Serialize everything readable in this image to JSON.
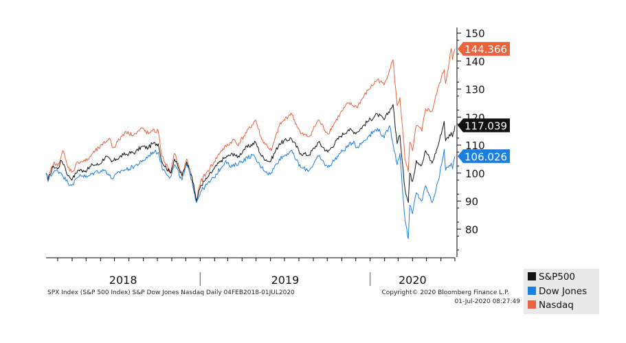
{
  "colors": {
    "sp500": "#111111",
    "dow": "#1a7fe0",
    "nasdaq": "#e8643c",
    "axis": "#000000"
  },
  "footer": {
    "source": "SPX Index (S&P 500 Index) S&P Dow Jones Nasdaq  Daily 04FEB2018-01JUL2020",
    "copyright": "Copyright© 2020 Bloomberg Finance L.P.",
    "timestamp": "01-Jul-2020 08:27:49"
  },
  "chart_data": {
    "type": "line",
    "x_start": "2018-02-04",
    "x_end": "2020-07-01",
    "year_labels": [
      "2018",
      "2019",
      "2020"
    ],
    "y_ticks": [
      80,
      90,
      100,
      110,
      120,
      130,
      140,
      150
    ],
    "ylim": [
      70,
      152
    ],
    "y_axis_side": "right",
    "grid": false,
    "legend_position": "bottom-right",
    "series": [
      {
        "name": "S&P500",
        "color": "#111111",
        "last_value": "117.039",
        "points": [
          [
            "2018-02-04",
            100.0
          ],
          [
            "2018-02-08",
            97.5
          ],
          [
            "2018-02-12",
            99.5
          ],
          [
            "2018-02-20",
            102.5
          ],
          [
            "2018-03-01",
            101.5
          ],
          [
            "2018-03-09",
            104.5
          ],
          [
            "2018-03-15",
            103.0
          ],
          [
            "2018-03-23",
            99.0
          ],
          [
            "2018-04-02",
            98.0
          ],
          [
            "2018-04-13",
            101.0
          ],
          [
            "2018-04-25",
            101.0
          ],
          [
            "2018-05-03",
            101.0
          ],
          [
            "2018-05-15",
            103.0
          ],
          [
            "2018-05-29",
            103.0
          ],
          [
            "2018-06-12",
            106.0
          ],
          [
            "2018-06-25",
            104.0
          ],
          [
            "2018-07-05",
            105.0
          ],
          [
            "2018-07-20",
            106.5
          ],
          [
            "2018-08-01",
            107.0
          ],
          [
            "2018-08-15",
            107.5
          ],
          [
            "2018-08-29",
            109.5
          ],
          [
            "2018-09-12",
            109.0
          ],
          [
            "2018-09-20",
            110.5
          ],
          [
            "2018-10-03",
            110.5
          ],
          [
            "2018-10-11",
            104.0
          ],
          [
            "2018-10-29",
            100.0
          ],
          [
            "2018-11-07",
            105.0
          ],
          [
            "2018-11-23",
            99.0
          ],
          [
            "2018-12-03",
            104.0
          ],
          [
            "2018-12-14",
            99.0
          ],
          [
            "2018-12-24",
            90.0
          ],
          [
            "2019-01-02",
            95.5
          ],
          [
            "2019-01-15",
            98.0
          ],
          [
            "2019-01-31",
            101.5
          ],
          [
            "2019-02-15",
            104.5
          ],
          [
            "2019-03-01",
            106.0
          ],
          [
            "2019-03-15",
            107.0
          ],
          [
            "2019-03-22",
            105.5
          ],
          [
            "2019-04-05",
            108.5
          ],
          [
            "2019-04-30",
            111.0
          ],
          [
            "2019-05-13",
            106.0
          ],
          [
            "2019-05-31",
            104.0
          ],
          [
            "2019-06-20",
            110.5
          ],
          [
            "2019-07-15",
            112.5
          ],
          [
            "2019-08-05",
            107.0
          ],
          [
            "2019-08-23",
            106.5
          ],
          [
            "2019-09-12",
            111.0
          ],
          [
            "2019-10-02",
            107.5
          ],
          [
            "2019-10-28",
            113.0
          ],
          [
            "2019-11-15",
            115.5
          ],
          [
            "2019-12-03",
            114.5
          ],
          [
            "2019-12-27",
            118.5
          ],
          [
            "2020-01-17",
            121.0
          ],
          [
            "2020-01-31",
            119.0
          ],
          [
            "2020-02-19",
            124.5
          ],
          [
            "2020-02-28",
            110.5
          ],
          [
            "2020-03-05",
            113.5
          ],
          [
            "2020-03-12",
            101.0
          ],
          [
            "2020-03-16",
            94.0
          ],
          [
            "2020-03-23",
            89.5
          ],
          [
            "2020-03-26",
            100.0
          ],
          [
            "2020-04-01",
            97.0
          ],
          [
            "2020-04-09",
            104.5
          ],
          [
            "2020-04-21",
            103.0
          ],
          [
            "2020-04-29",
            108.0
          ],
          [
            "2020-05-13",
            103.5
          ],
          [
            "2020-05-27",
            110.5
          ],
          [
            "2020-06-08",
            118.5
          ],
          [
            "2020-06-11",
            111.5
          ],
          [
            "2020-06-23",
            114.5
          ],
          [
            "2020-06-26",
            113.0
          ],
          [
            "2020-07-01",
            117.0
          ]
        ]
      },
      {
        "name": "Dow Jones",
        "color": "#1a7fe0",
        "last_value": "106.026",
        "points": [
          [
            "2018-02-04",
            100.0
          ],
          [
            "2018-02-08",
            97.0
          ],
          [
            "2018-02-12",
            99.0
          ],
          [
            "2018-02-26",
            101.0
          ],
          [
            "2018-03-09",
            100.0
          ],
          [
            "2018-03-23",
            96.5
          ],
          [
            "2018-04-02",
            96.0
          ],
          [
            "2018-04-18",
            99.5
          ],
          [
            "2018-05-03",
            98.5
          ],
          [
            "2018-05-21",
            100.5
          ],
          [
            "2018-06-12",
            101.0
          ],
          [
            "2018-06-25",
            98.0
          ],
          [
            "2018-07-17",
            101.0
          ],
          [
            "2018-08-01",
            101.5
          ],
          [
            "2018-08-29",
            104.0
          ],
          [
            "2018-09-21",
            107.5
          ],
          [
            "2018-10-03",
            107.5
          ],
          [
            "2018-10-11",
            102.0
          ],
          [
            "2018-10-29",
            98.5
          ],
          [
            "2018-11-07",
            103.0
          ],
          [
            "2018-11-23",
            97.5
          ],
          [
            "2018-12-03",
            103.0
          ],
          [
            "2018-12-14",
            97.5
          ],
          [
            "2018-12-24",
            89.5
          ],
          [
            "2019-01-02",
            93.5
          ],
          [
            "2019-01-31",
            98.5
          ],
          [
            "2019-02-25",
            104.5
          ],
          [
            "2019-03-08",
            102.0
          ],
          [
            "2019-04-23",
            106.5
          ],
          [
            "2019-05-13",
            102.0
          ],
          [
            "2019-05-31",
            99.5
          ],
          [
            "2019-06-20",
            105.0
          ],
          [
            "2019-07-15",
            108.0
          ],
          [
            "2019-08-05",
            102.0
          ],
          [
            "2019-08-23",
            101.0
          ],
          [
            "2019-09-12",
            106.0
          ],
          [
            "2019-10-02",
            102.0
          ],
          [
            "2019-10-28",
            107.0
          ],
          [
            "2019-11-27",
            111.5
          ],
          [
            "2019-12-03",
            109.0
          ],
          [
            "2019-12-27",
            113.0
          ],
          [
            "2020-01-17",
            116.0
          ],
          [
            "2020-01-31",
            112.5
          ],
          [
            "2020-02-12",
            117.0
          ],
          [
            "2020-02-28",
            103.0
          ],
          [
            "2020-03-05",
            107.0
          ],
          [
            "2020-03-12",
            91.0
          ],
          [
            "2020-03-16",
            83.0
          ],
          [
            "2020-03-23",
            76.5
          ],
          [
            "2020-03-26",
            88.5
          ],
          [
            "2020-04-01",
            85.5
          ],
          [
            "2020-04-09",
            93.0
          ],
          [
            "2020-04-21",
            90.0
          ],
          [
            "2020-04-29",
            95.5
          ],
          [
            "2020-05-13",
            89.5
          ],
          [
            "2020-05-27",
            97.5
          ],
          [
            "2020-06-08",
            108.5
          ],
          [
            "2020-06-11",
            101.0
          ],
          [
            "2020-06-23",
            103.5
          ],
          [
            "2020-06-26",
            101.5
          ],
          [
            "2020-07-01",
            106.0
          ]
        ]
      },
      {
        "name": "Nasdaq",
        "color": "#e8643c",
        "last_value": "144.366",
        "points": [
          [
            "2018-02-04",
            100.0
          ],
          [
            "2018-02-08",
            97.5
          ],
          [
            "2018-02-12",
            100.0
          ],
          [
            "2018-02-20",
            103.5
          ],
          [
            "2018-03-01",
            102.5
          ],
          [
            "2018-03-12",
            108.0
          ],
          [
            "2018-03-23",
            102.0
          ],
          [
            "2018-04-02",
            100.5
          ],
          [
            "2018-04-13",
            104.0
          ],
          [
            "2018-05-03",
            104.5
          ],
          [
            "2018-05-15",
            107.0
          ],
          [
            "2018-06-05",
            110.0
          ],
          [
            "2018-06-20",
            112.5
          ],
          [
            "2018-06-28",
            109.0
          ],
          [
            "2018-07-25",
            115.0
          ],
          [
            "2018-08-01",
            114.0
          ],
          [
            "2018-08-15",
            114.0
          ],
          [
            "2018-08-29",
            116.0
          ],
          [
            "2018-09-12",
            114.0
          ],
          [
            "2018-09-20",
            115.0
          ],
          [
            "2018-10-03",
            115.0
          ],
          [
            "2018-10-11",
            106.0
          ],
          [
            "2018-10-29",
            100.0
          ],
          [
            "2018-11-07",
            107.0
          ],
          [
            "2018-11-23",
            99.0
          ],
          [
            "2018-12-03",
            105.0
          ],
          [
            "2018-12-14",
            99.0
          ],
          [
            "2018-12-24",
            90.0
          ],
          [
            "2019-01-02",
            97.0
          ],
          [
            "2019-01-31",
            104.0
          ],
          [
            "2019-02-15",
            108.0
          ],
          [
            "2019-03-15",
            112.0
          ],
          [
            "2019-03-22",
            110.0
          ],
          [
            "2019-04-30",
            119.0
          ],
          [
            "2019-05-13",
            112.0
          ],
          [
            "2019-06-03",
            108.0
          ],
          [
            "2019-06-20",
            117.0
          ],
          [
            "2019-07-15",
            121.5
          ],
          [
            "2019-08-05",
            114.0
          ],
          [
            "2019-08-23",
            113.0
          ],
          [
            "2019-09-12",
            119.0
          ],
          [
            "2019-10-02",
            114.0
          ],
          [
            "2019-10-28",
            121.0
          ],
          [
            "2019-11-15",
            125.0
          ],
          [
            "2019-12-03",
            123.5
          ],
          [
            "2019-12-27",
            129.5
          ],
          [
            "2020-01-17",
            133.5
          ],
          [
            "2020-01-31",
            131.5
          ],
          [
            "2020-02-19",
            140.5
          ],
          [
            "2020-02-28",
            124.0
          ],
          [
            "2020-03-05",
            127.0
          ],
          [
            "2020-03-12",
            113.0
          ],
          [
            "2020-03-16",
            104.5
          ],
          [
            "2020-03-23",
            100.5
          ],
          [
            "2020-03-26",
            111.0
          ],
          [
            "2020-04-01",
            108.0
          ],
          [
            "2020-04-09",
            117.0
          ],
          [
            "2020-04-21",
            115.0
          ],
          [
            "2020-04-29",
            123.0
          ],
          [
            "2020-05-13",
            122.0
          ],
          [
            "2020-05-27",
            131.0
          ],
          [
            "2020-06-08",
            137.0
          ],
          [
            "2020-06-11",
            132.0
          ],
          [
            "2020-06-23",
            144.5
          ],
          [
            "2020-06-26",
            140.5
          ],
          [
            "2020-07-01",
            144.4
          ]
        ]
      }
    ]
  }
}
